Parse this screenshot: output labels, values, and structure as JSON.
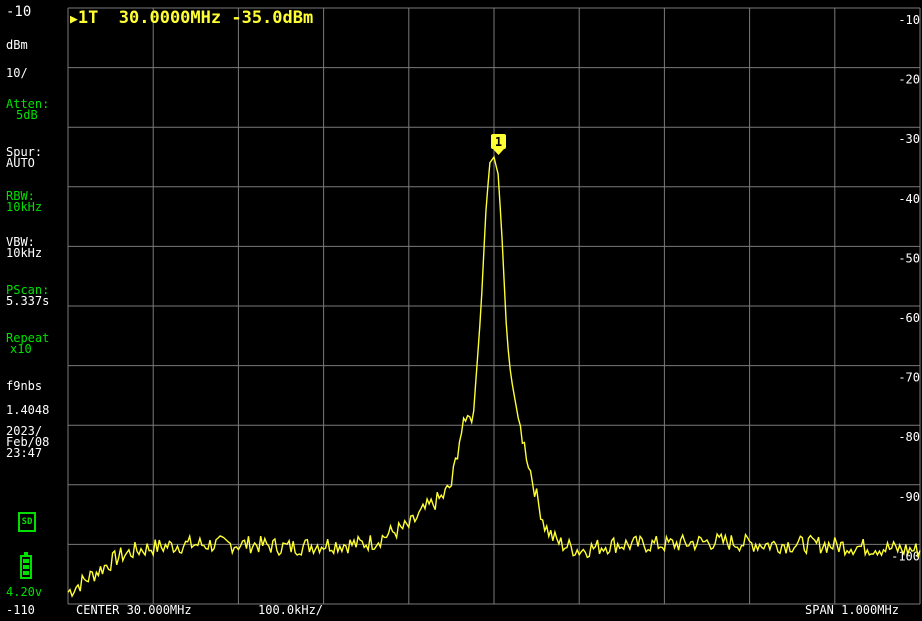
{
  "header": {
    "marker_text": "1T  30.0000MHz -35.0dBm",
    "marker_number": "1"
  },
  "sidebar": {
    "ref_level": "-10",
    "unit": "dBm",
    "scale": "10/",
    "atten_label": "Atten:",
    "atten_value": "5dB",
    "spur_label": "Spur:",
    "spur_value": "AUTO",
    "rbw_label": "RBW:",
    "rbw_value": "10kHz",
    "vbw_label": "VBW:",
    "vbw_value": "10kHz",
    "pscan_label": "PScan:",
    "pscan_value": "5.337s",
    "repeat_label": "Repeat",
    "repeat_value": "x10",
    "fw_label": "f9nbs",
    "fw_version": "1.4048",
    "date_year": "2023/",
    "date_day": "Feb/08",
    "time": "23:47",
    "sd_label": "SD",
    "battery_voltage": "4.20v",
    "bottom_level": "-110"
  },
  "footer": {
    "center": "CENTER 30.000MHz",
    "per_div": "100.0kHz/",
    "span": "SPAN 1.000MHz"
  },
  "y_axis_labels": [
    "-10",
    "-20",
    "-30",
    "-40",
    "-50",
    "-60",
    "-70",
    "-80",
    "-90",
    "-100"
  ],
  "colors": {
    "trace": "#ffff33",
    "grid": "#7a7a7a",
    "accent_green": "#00e000",
    "marker": "#ffff33"
  },
  "chart_data": {
    "type": "line",
    "x_unit": "MHz",
    "y_unit": "dBm",
    "xlim": [
      29.5,
      30.5
    ],
    "ylim": [
      -110,
      -10
    ],
    "grid": true,
    "series": [
      {
        "x": [
          29.5,
          29.52,
          29.54,
          29.56,
          29.58,
          29.6,
          29.64,
          29.68,
          29.72,
          29.76,
          29.8,
          29.84,
          29.86,
          29.88,
          29.9,
          29.92,
          29.94,
          29.95,
          29.96,
          29.97,
          29.975,
          29.98,
          29.985,
          29.99,
          29.995,
          30.0,
          30.005,
          30.01,
          30.015,
          30.02,
          30.025,
          30.03,
          30.04,
          30.05,
          30.06,
          30.07,
          30.08,
          30.1,
          30.14,
          30.2,
          30.26,
          30.32,
          30.38,
          30.44,
          30.5
        ],
        "y": [
          -108,
          -106,
          -104,
          -102,
          -101,
          -100.5,
          -100,
          -100,
          -100,
          -100.5,
          -100,
          -100,
          -99.5,
          -98,
          -97,
          -94,
          -92,
          -90,
          -82,
          -78,
          -80,
          -70,
          -60,
          -45,
          -36,
          -35,
          -38,
          -50,
          -65,
          -72,
          -76,
          -80,
          -86,
          -92,
          -97,
          -99,
          -100,
          -101,
          -100,
          -100,
          -99.5,
          -100,
          -100,
          -100.5,
          -101
        ]
      }
    ]
  }
}
